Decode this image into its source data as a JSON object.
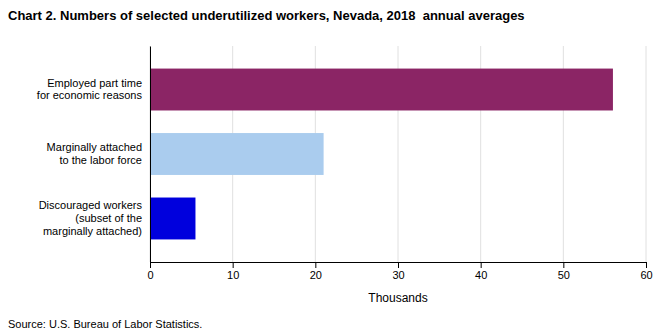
{
  "chart_data": {
    "type": "bar",
    "orientation": "horizontal",
    "title": "Chart 2. Numbers of selected underutilized workers, Nevada, 2018  annual averages",
    "categories": [
      "Discouraged workers\n(subset of the\nmarginally attached)",
      "Marginally attached\nto the labor force",
      "Employed part time\nfor economic reasons"
    ],
    "values": [
      5.5,
      21.0,
      56.0
    ],
    "colors": [
      "#0000dd",
      "#aaccee",
      "#8b2565"
    ],
    "xlabel": "Thousands",
    "xlim": [
      0,
      60
    ],
    "xticks": [
      0,
      10,
      20,
      30,
      40,
      50,
      60
    ],
    "grid": true,
    "annotations": [
      "Source: U.S. Bureau of Labor Statistics."
    ]
  }
}
